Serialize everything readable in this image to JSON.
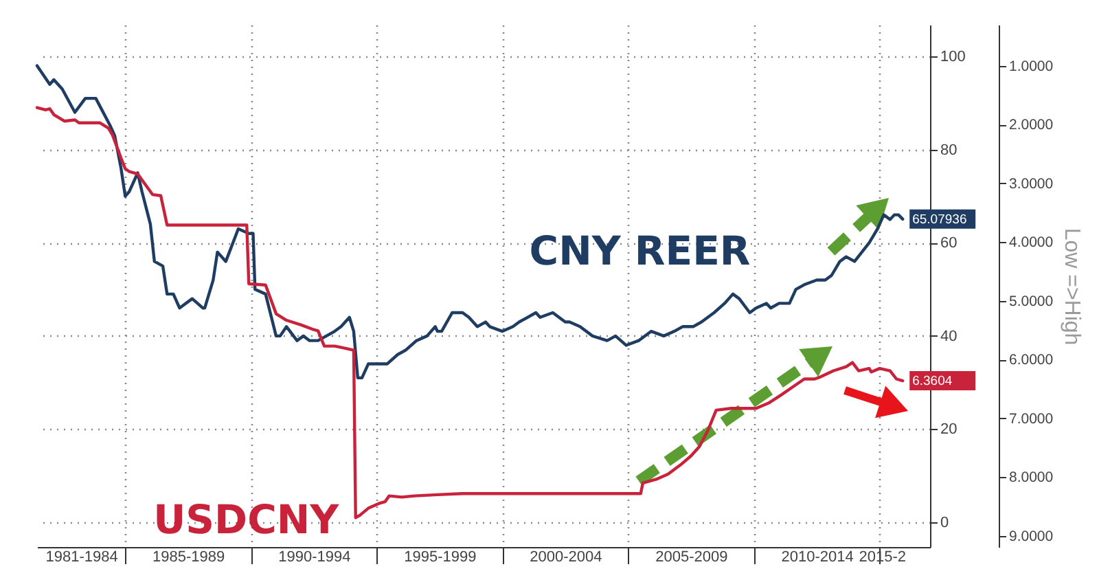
{
  "chart_data": {
    "type": "line",
    "xlim": [
      "1981-07",
      "2017-01"
    ],
    "xticks": [
      {
        "value": "1983-04",
        "label": "1981-1984"
      },
      {
        "value": "1985",
        "label": null
      },
      {
        "value": "1987-07",
        "label": "1985-1989"
      },
      {
        "value": "1990",
        "label": null
      },
      {
        "value": "1992-07",
        "label": "1990-1994"
      },
      {
        "value": "1995",
        "label": null
      },
      {
        "value": "1997-07",
        "label": "1995-1999"
      },
      {
        "value": "2000",
        "label": null
      },
      {
        "value": "2002-07",
        "label": "2000-2004"
      },
      {
        "value": "2005",
        "label": null
      },
      {
        "value": "2007-07",
        "label": "2005-2009"
      },
      {
        "value": "2010",
        "label": null
      },
      {
        "value": "2012-07",
        "label": "2010-2014"
      },
      {
        "value": "2015",
        "label": null
      },
      {
        "value": "2015-02",
        "label": "2015-2"
      }
    ],
    "ylim": [
      -5.3,
      106.8
    ],
    "yticks": [
      0,
      20,
      40,
      60,
      80,
      100
    ],
    "y2lim": [
      9.19,
      0.3
    ],
    "y2ticks": [
      {
        "value": 1,
        "label": "1.0000"
      },
      {
        "value": 2,
        "label": "2.0000"
      },
      {
        "value": 3,
        "label": "3.0000"
      },
      {
        "value": 4,
        "label": "4.0000"
      },
      {
        "value": 5,
        "label": "5.0000"
      },
      {
        "value": 6,
        "label": "6.0000"
      },
      {
        "value": 7,
        "label": "7.0000"
      },
      {
        "value": 8,
        "label": "8.0000"
      },
      {
        "value": 9,
        "label": "9.0000"
      }
    ],
    "y2label": "Low =>High",
    "grid": true,
    "series": [
      {
        "name": "CNY REER",
        "color": "#1f3d63",
        "x": [
          "1981-07",
          "1982-01",
          "1982-03",
          "1982-07",
          "1983-01",
          "1983-06",
          "1983-11",
          "1984-06",
          "1984-08",
          "1984-11",
          "1985-01",
          "1985-03",
          "1985-07",
          "1985-09",
          "1986-01",
          "1986-03",
          "1986-07",
          "1986-09",
          "1986-12",
          "1987-03",
          "1987-09",
          "1988-02",
          "1988-03",
          "1988-07",
          "1988-09",
          "1989-01",
          "1989-07",
          "1989-12",
          "1990-02",
          "1990-03",
          "1990-08",
          "1991-01",
          "1991-03",
          "1991-06",
          "1991-11",
          "1992-02",
          "1992-05",
          "1992-09",
          "1993-05",
          "1993-08",
          "1993-12",
          "1994-02",
          "1994-04",
          "1994-06",
          "1994-09",
          "1995-02",
          "1995-06",
          "1995-11",
          "1996-03",
          "1996-08",
          "1997-01",
          "1997-05",
          "1997-06",
          "1997-08",
          "1998-01",
          "1998-06",
          "1998-09",
          "1999-01",
          "1999-05",
          "1999-07",
          "2000-01",
          "2000-06",
          "2000-09",
          "2001-05",
          "2001-07",
          "2002-01",
          "2002-07",
          "2002-09",
          "2003-02",
          "2003-08",
          "2004-03",
          "2004-07",
          "2004-12",
          "2005-06",
          "2005-12",
          "2006-06",
          "2006-11",
          "2007-03",
          "2007-08",
          "2007-12",
          "2008-06",
          "2008-11",
          "2009-03",
          "2009-06",
          "2009-11",
          "2010-02",
          "2010-07",
          "2010-09",
          "2011-01",
          "2011-06",
          "2011-09",
          "2012-01",
          "2012-07",
          "2012-11",
          "2013-02",
          "2013-06",
          "2013-09",
          "2014-01",
          "2014-08",
          "2014-12",
          "2015-03",
          "2015-06",
          "2015-08",
          "2015-10",
          "2015-12"
        ],
        "values": [
          98,
          94,
          95,
          93,
          88,
          91,
          91,
          85,
          83,
          76,
          70,
          71,
          75,
          71,
          64,
          56,
          55,
          49,
          49,
          46,
          48,
          46,
          46,
          52,
          58,
          56,
          63,
          62,
          62,
          50,
          49,
          40,
          40,
          42,
          39,
          40,
          39,
          39,
          41,
          42,
          44,
          41,
          31,
          31,
          34,
          34,
          34,
          36,
          37,
          39,
          40,
          42,
          41,
          41,
          45,
          45,
          44,
          42,
          43,
          42,
          41,
          42,
          43,
          45,
          44,
          45,
          43,
          43,
          42,
          40,
          39,
          40,
          38,
          39,
          41,
          40,
          41,
          42,
          42,
          43,
          45,
          47,
          49,
          48,
          45,
          46,
          47,
          46,
          47,
          47,
          50,
          51,
          52,
          52,
          53,
          56,
          57,
          56,
          60,
          63,
          66,
          65,
          66,
          66,
          65.07936
        ],
        "value_labels": [
          null,
          null,
          null,
          null,
          null,
          null,
          null,
          null,
          null,
          null,
          null,
          null,
          null,
          null,
          null,
          null,
          null,
          null,
          null,
          null,
          null,
          null,
          null,
          null,
          null,
          null,
          null,
          null,
          null,
          null,
          null,
          null,
          null,
          null,
          null,
          null,
          null,
          null,
          null,
          null,
          null,
          null,
          null,
          null,
          null,
          null,
          null,
          null,
          null,
          null,
          null,
          null,
          null,
          null,
          null,
          null,
          null,
          null,
          null,
          null,
          null,
          null,
          null,
          null,
          null,
          null,
          null,
          null,
          null,
          null,
          null,
          null,
          null,
          null,
          null,
          null,
          null,
          null,
          null,
          null,
          null,
          null,
          null,
          null,
          null,
          null,
          null,
          null,
          null,
          null,
          null,
          null,
          null,
          null,
          null,
          null,
          null,
          null,
          null,
          null,
          null,
          null,
          null,
          null,
          "65.07936"
        ]
      },
      {
        "name": "USDCNY",
        "color": "#c8233a",
        "axis": "y2",
        "x": [
          "1981-07",
          "1981-11",
          "1982-01",
          "1982-03",
          "1982-08",
          "1983-01",
          "1983-03",
          "1984-01",
          "1984-05",
          "1984-07",
          "1984-11",
          "1985-01",
          "1985-03",
          "1985-07",
          "1986-02",
          "1986-06",
          "1986-09",
          "1989-11",
          "1989-12",
          "1990-08",
          "1991-01",
          "1991-06",
          "1992-01",
          "1992-07",
          "1992-09",
          "1992-12",
          "1993-05",
          "1993-09",
          "1994-02",
          "1994-03",
          "1994-05",
          "1994-09",
          "1995-02",
          "1995-05",
          "1995-07",
          "1996-01",
          "1996-07",
          "1997-06",
          "1998-06",
          "2005-07",
          "2005-08",
          "2006-03",
          "2006-08",
          "2007-02",
          "2007-07",
          "2007-11",
          "2008-03",
          "2008-07",
          "2009-02",
          "2010-02",
          "2010-08",
          "2011-02",
          "2011-09",
          "2012-01",
          "2012-06",
          "2012-09",
          "2013-03",
          "2013-09",
          "2013-12",
          "2014-03",
          "2014-08",
          "2014-09",
          "2015-01",
          "2015-06",
          "2015-09",
          "2015-12"
        ],
        "values": [
          1.71,
          1.75,
          1.73,
          1.83,
          1.94,
          1.92,
          1.97,
          1.97,
          2.06,
          2.18,
          2.57,
          2.75,
          2.8,
          2.84,
          3.19,
          3.21,
          3.71,
          3.71,
          4.71,
          4.73,
          5.22,
          5.33,
          5.41,
          5.49,
          5.51,
          5.77,
          5.77,
          5.8,
          5.84,
          8.69,
          8.65,
          8.53,
          8.45,
          8.42,
          8.32,
          8.34,
          8.32,
          8.3,
          8.28,
          8.28,
          8.1,
          8.03,
          7.95,
          7.79,
          7.64,
          7.48,
          7.21,
          6.86,
          6.83,
          6.83,
          6.74,
          6.6,
          6.43,
          6.33,
          6.33,
          6.29,
          6.19,
          6.12,
          6.05,
          6.19,
          6.15,
          6.21,
          6.15,
          6.19,
          6.33,
          6.3604
        ],
        "value_labels": [
          null,
          null,
          null,
          null,
          null,
          null,
          null,
          null,
          null,
          null,
          null,
          null,
          null,
          null,
          null,
          null,
          null,
          null,
          null,
          null,
          null,
          null,
          null,
          null,
          null,
          null,
          null,
          null,
          null,
          null,
          null,
          null,
          null,
          null,
          null,
          null,
          null,
          null,
          null,
          null,
          null,
          null,
          null,
          null,
          null,
          null,
          null,
          null,
          null,
          null,
          null,
          null,
          null,
          null,
          null,
          null,
          null,
          null,
          null,
          null,
          null,
          null,
          null,
          null,
          null,
          "6.3604"
        ]
      }
    ]
  }
}
